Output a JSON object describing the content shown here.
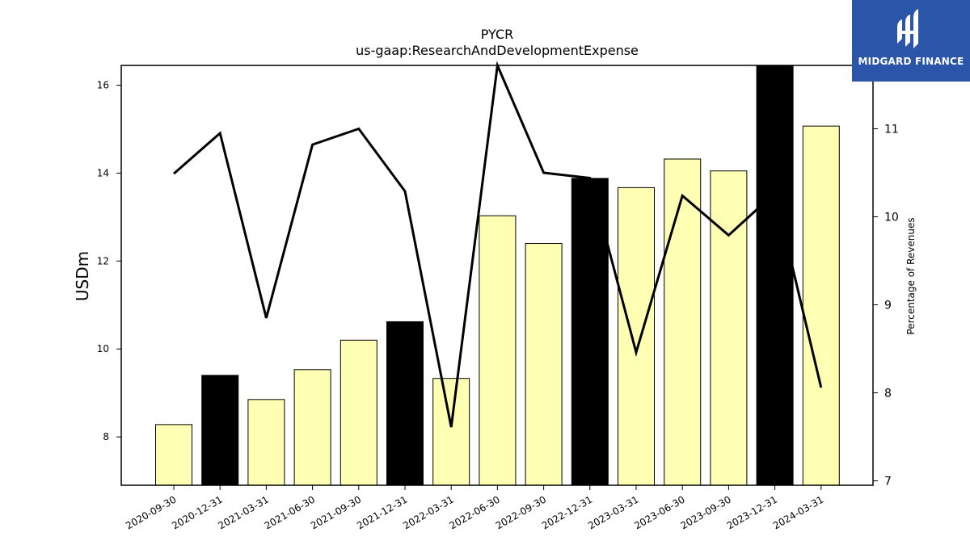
{
  "chart_data": {
    "type": "bar",
    "title": "PYCR",
    "subtitle": "us-gaap:ResearchAndDevelopmentExpense",
    "ylabel": "USDm",
    "y2label": "Percentage of Revenues",
    "categories": [
      "2020-09-30",
      "2020-12-31",
      "2021-03-31",
      "2021-06-30",
      "2021-09-30",
      "2021-12-31",
      "2022-03-31",
      "2022-06-30",
      "2022-09-30",
      "2022-12-31",
      "2023-03-31",
      "2023-06-30",
      "2023-09-30",
      "2023-12-31",
      "2024-03-31"
    ],
    "series": [
      {
        "kind": "bar",
        "values": [
          8.28,
          9.4,
          8.85,
          9.53,
          10.2,
          10.62,
          9.33,
          13.03,
          12.4,
          13.88,
          13.67,
          14.32,
          14.05,
          16.6,
          15.07
        ],
        "colors": [
          "#ffffb3",
          "#000000",
          "#ffffb3",
          "#ffffb3",
          "#ffffb3",
          "#000000",
          "#ffffb3",
          "#ffffb3",
          "#ffffb3",
          "#000000",
          "#ffffb3",
          "#ffffb3",
          "#ffffb3",
          "#000000",
          "#ffffb3"
        ]
      },
      {
        "kind": "line",
        "axis": "right",
        "values": [
          10.49,
          10.95,
          8.85,
          10.82,
          11.0,
          10.29,
          7.61,
          11.72,
          10.5,
          10.44,
          8.46,
          10.24,
          9.79,
          10.27,
          8.06
        ],
        "color": "#000000"
      }
    ],
    "ylim": [
      6.9,
      16.45
    ],
    "y2lim": [
      6.95,
      11.72
    ],
    "yticks": [
      "8",
      "10",
      "12",
      "14",
      "16"
    ],
    "y2ticks": [
      "7",
      "8",
      "9",
      "10",
      "11"
    ],
    "grid": false
  },
  "logo": {
    "text": "MIDGARD FINANCE"
  }
}
